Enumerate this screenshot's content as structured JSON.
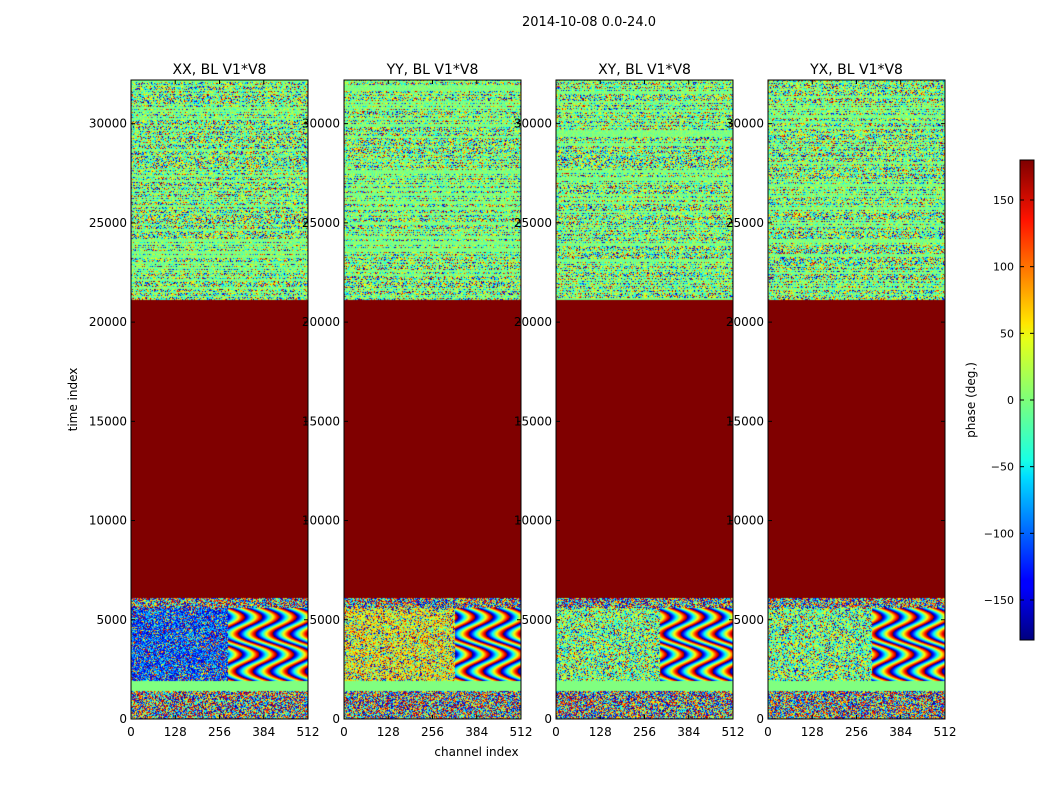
{
  "figure": {
    "suptitle": "2014-10-08 0.0-24.0"
  },
  "chart_data": [
    {
      "type": "heatmap",
      "title": "XX, BL V1*V8",
      "xlabel": "",
      "ylabel": "time index",
      "xlim": [
        0,
        512
      ],
      "ylim": [
        0,
        32200
      ],
      "xticks": [
        "0",
        "128",
        "256",
        "384",
        "512"
      ],
      "yticks": [
        "0",
        "5000",
        "10000",
        "15000",
        "20000",
        "25000",
        "30000"
      ],
      "colormap": "jet",
      "bands": [
        {
          "y0": 0,
          "y1": 1400,
          "content": "noise"
        },
        {
          "y0": 1400,
          "y1": 1900,
          "content": "zero-phase"
        },
        {
          "y0": 1900,
          "y1": 5600,
          "content": "noise+fringes",
          "fringe_start_channel": 280,
          "bias_deg": -110
        },
        {
          "y0": 5600,
          "y1": 6100,
          "content": "noise"
        },
        {
          "y0": 6100,
          "y1": 21100,
          "content": "saturated",
          "value_deg": 180
        },
        {
          "y0": 21100,
          "y1": 32200,
          "content": "striped-noise"
        }
      ]
    },
    {
      "type": "heatmap",
      "title": "YY, BL V1*V8",
      "xlabel": "channel index",
      "ylabel": "",
      "xlim": [
        0,
        512
      ],
      "ylim": [
        0,
        32200
      ],
      "xticks": [
        "0",
        "128",
        "256",
        "384",
        "512"
      ],
      "yticks": [
        "0",
        "5000",
        "10000",
        "15000",
        "20000",
        "25000",
        "30000"
      ],
      "colormap": "jet",
      "bands": [
        {
          "y0": 0,
          "y1": 1400,
          "content": "noise"
        },
        {
          "y0": 1400,
          "y1": 1900,
          "content": "zero-phase"
        },
        {
          "y0": 1900,
          "y1": 5600,
          "content": "noise+fringes",
          "fringe_start_channel": 320,
          "bias_deg": 40
        },
        {
          "y0": 5600,
          "y1": 6100,
          "content": "noise"
        },
        {
          "y0": 6100,
          "y1": 21100,
          "content": "saturated",
          "value_deg": 180
        },
        {
          "y0": 21100,
          "y1": 32200,
          "content": "striped-noise"
        }
      ]
    },
    {
      "type": "heatmap",
      "title": "XY, BL V1*V8",
      "xlabel": "",
      "ylabel": "",
      "xlim": [
        0,
        512
      ],
      "ylim": [
        0,
        32200
      ],
      "xticks": [
        "0",
        "128",
        "256",
        "384",
        "512"
      ],
      "yticks": [
        "0",
        "5000",
        "10000",
        "15000",
        "20000",
        "25000",
        "30000"
      ],
      "colormap": "jet",
      "bands": [
        {
          "y0": 0,
          "y1": 1400,
          "content": "noise"
        },
        {
          "y0": 1400,
          "y1": 1900,
          "content": "zero-phase"
        },
        {
          "y0": 1900,
          "y1": 5600,
          "content": "noise+fringes",
          "fringe_start_channel": 300,
          "bias_deg": 0
        },
        {
          "y0": 5600,
          "y1": 6100,
          "content": "noise"
        },
        {
          "y0": 6100,
          "y1": 21100,
          "content": "saturated",
          "value_deg": 180
        },
        {
          "y0": 21100,
          "y1": 32200,
          "content": "striped-noise"
        }
      ]
    },
    {
      "type": "heatmap",
      "title": "YX, BL V1*V8",
      "xlabel": "",
      "ylabel": "",
      "xlim": [
        0,
        512
      ],
      "ylim": [
        0,
        32200
      ],
      "xticks": [
        "0",
        "128",
        "256",
        "384",
        "512"
      ],
      "yticks": [
        "0",
        "5000",
        "10000",
        "15000",
        "20000",
        "25000",
        "30000"
      ],
      "colormap": "jet",
      "bands": [
        {
          "y0": 0,
          "y1": 1400,
          "content": "noise"
        },
        {
          "y0": 1400,
          "y1": 1900,
          "content": "zero-phase"
        },
        {
          "y0": 1900,
          "y1": 5600,
          "content": "noise+fringes",
          "fringe_start_channel": 300,
          "bias_deg": 0
        },
        {
          "y0": 5600,
          "y1": 6100,
          "content": "noise"
        },
        {
          "y0": 6100,
          "y1": 21100,
          "content": "saturated",
          "value_deg": 180
        },
        {
          "y0": 21100,
          "y1": 32200,
          "content": "striped-noise"
        }
      ]
    }
  ],
  "colorbar": {
    "label": "phase (deg.)",
    "range": [
      -180,
      180
    ],
    "ticks": [
      "150",
      "100",
      "50",
      "0",
      "−50",
      "−100",
      "−150"
    ],
    "tick_values": [
      150,
      100,
      50,
      0,
      -50,
      -100,
      -150
    ],
    "colormap": "jet"
  }
}
